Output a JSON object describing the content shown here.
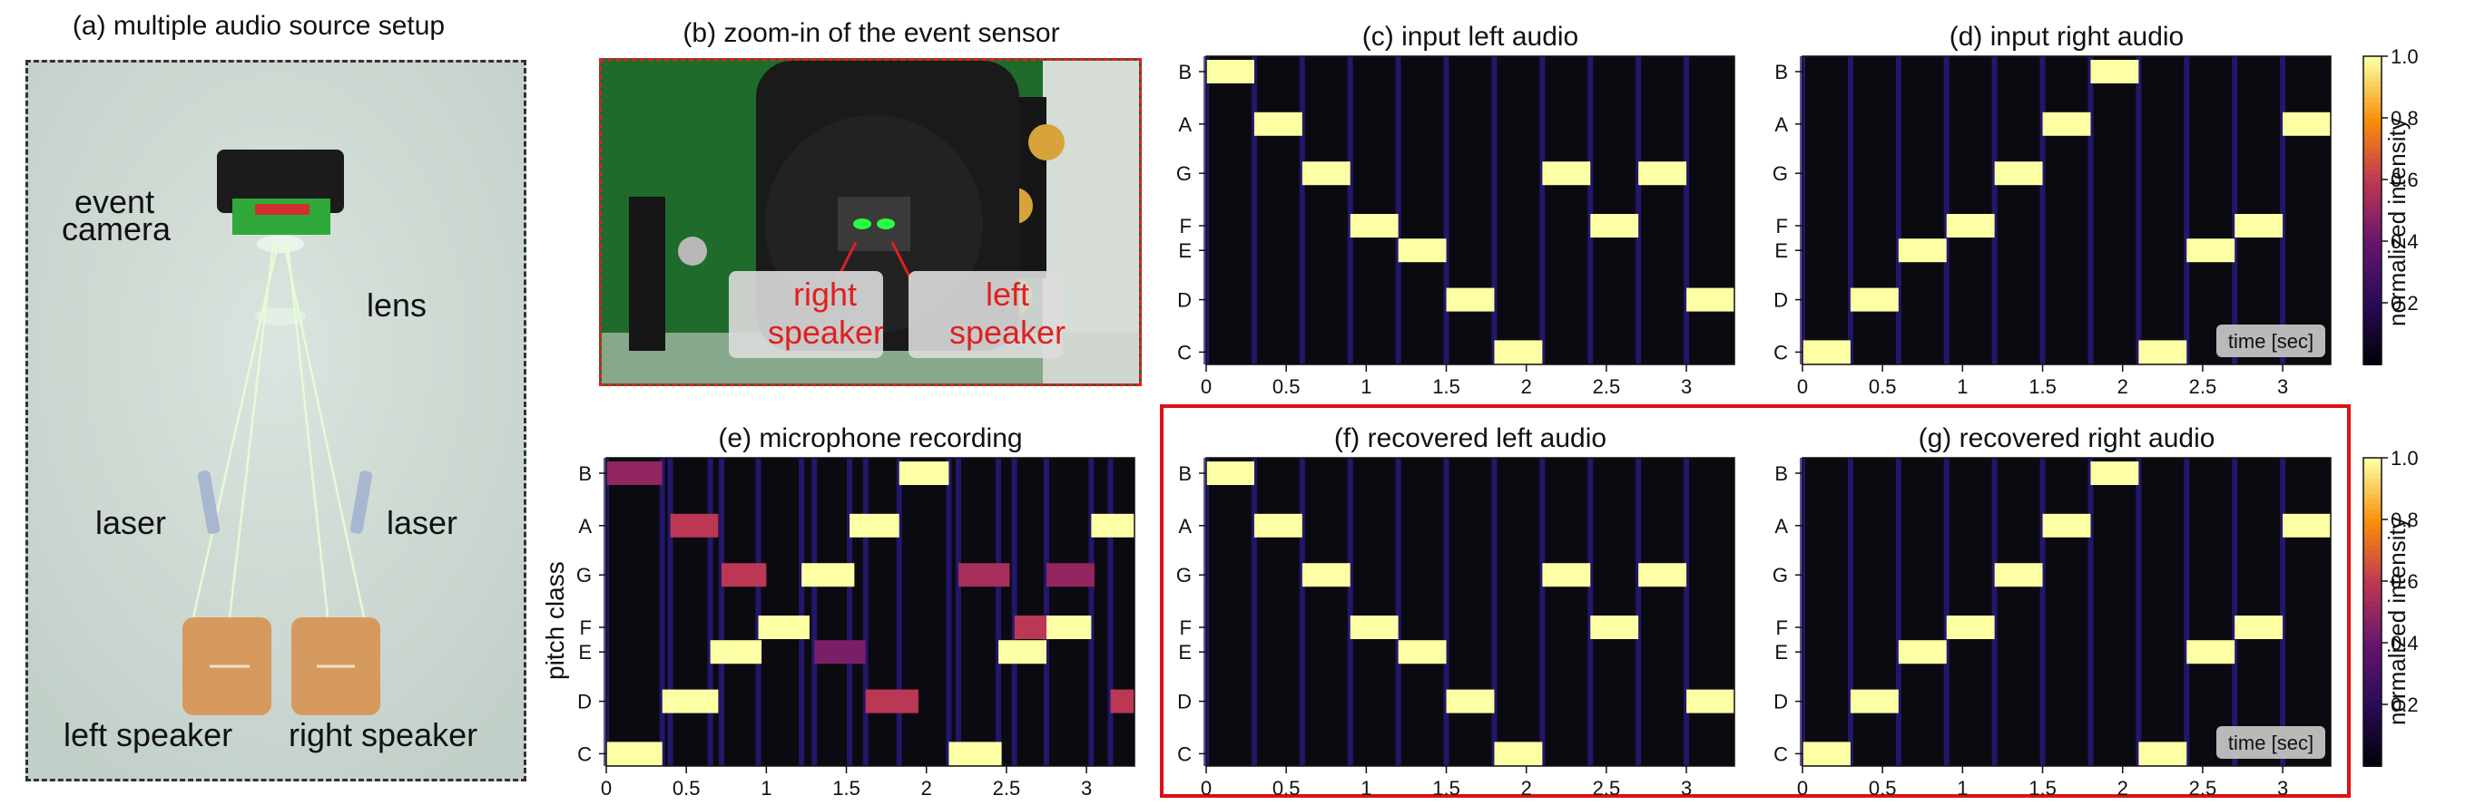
{
  "panels": {
    "a": {
      "title": "(a) multiple audio source setup",
      "labels": {
        "event_camera_1": "event",
        "event_camera_2": "camera",
        "lens": "lens",
        "laser_left": "laser",
        "laser_right": "laser",
        "left_speaker": "left speaker",
        "right_speaker": "right speaker"
      },
      "colors": {
        "background": "#cfd9d3",
        "border": "#333333",
        "speaker": "#d79a5e",
        "laser": "#d9f5c4"
      }
    },
    "b": {
      "title": "(b) zoom-in of the event sensor",
      "labels": {
        "right_speaker_1": "right",
        "right_speaker_2": "speaker",
        "left_speaker_1": "left",
        "left_speaker_2": "speaker"
      },
      "colors": {
        "border": "#e02020",
        "label_text": "#e02020",
        "pcb": "#1f6a2a"
      }
    },
    "c": {
      "title": "(c) input left audio"
    },
    "d": {
      "title": "(d) input right audio",
      "badge": "time [sec]"
    },
    "e": {
      "title": "(e) microphone recording",
      "ylabel": "pitch class"
    },
    "f": {
      "title": "(f) recovered left audio"
    },
    "g": {
      "title": "(g) recovered right audio",
      "badge": "time [sec]"
    },
    "colorbar": {
      "label": "normalized intensity",
      "ticks": [
        "0.2",
        "0.4",
        "0.6",
        "0.8",
        "1.0"
      ]
    },
    "highlight_color": "#e01010"
  },
  "chart_data": [
    {
      "id": "c",
      "type": "heatmap",
      "title": "(c) input left audio",
      "y_categories": [
        "C",
        "D",
        "E",
        "F",
        "G",
        "A",
        "B"
      ],
      "x_ticks": [
        "0",
        "0.5",
        "1",
        "1.5",
        "2",
        "2.5",
        "3"
      ],
      "xlim": [
        0,
        3.3
      ],
      "notes": [
        {
          "pitch": "B",
          "t0": 0.0,
          "t1": 0.3
        },
        {
          "pitch": "A",
          "t0": 0.3,
          "t1": 0.6
        },
        {
          "pitch": "G",
          "t0": 0.6,
          "t1": 0.9
        },
        {
          "pitch": "F",
          "t0": 0.9,
          "t1": 1.2
        },
        {
          "pitch": "E",
          "t0": 1.2,
          "t1": 1.5
        },
        {
          "pitch": "D",
          "t0": 1.5,
          "t1": 1.8
        },
        {
          "pitch": "C",
          "t0": 1.8,
          "t1": 2.1
        },
        {
          "pitch": "G",
          "t0": 2.1,
          "t1": 2.4
        },
        {
          "pitch": "F",
          "t0": 2.4,
          "t1": 2.7
        },
        {
          "pitch": "G",
          "t0": 2.7,
          "t1": 3.0
        },
        {
          "pitch": "D",
          "t0": 3.0,
          "t1": 3.3
        }
      ]
    },
    {
      "id": "d",
      "type": "heatmap",
      "title": "(d) input right audio",
      "y_categories": [
        "C",
        "D",
        "E",
        "F",
        "G",
        "A",
        "B"
      ],
      "x_ticks": [
        "0",
        "0.5",
        "1",
        "1.5",
        "2",
        "2.5",
        "3"
      ],
      "xlim": [
        0,
        3.3
      ],
      "notes": [
        {
          "pitch": "C",
          "t0": 0.0,
          "t1": 0.3
        },
        {
          "pitch": "D",
          "t0": 0.3,
          "t1": 0.6
        },
        {
          "pitch": "E",
          "t0": 0.6,
          "t1": 0.9
        },
        {
          "pitch": "F",
          "t0": 0.9,
          "t1": 1.2
        },
        {
          "pitch": "G",
          "t0": 1.2,
          "t1": 1.5
        },
        {
          "pitch": "A",
          "t0": 1.5,
          "t1": 1.8
        },
        {
          "pitch": "B",
          "t0": 1.8,
          "t1": 2.1
        },
        {
          "pitch": "C",
          "t0": 2.1,
          "t1": 2.4
        },
        {
          "pitch": "E",
          "t0": 2.4,
          "t1": 2.7
        },
        {
          "pitch": "F",
          "t0": 2.7,
          "t1": 3.0
        },
        {
          "pitch": "A",
          "t0": 3.0,
          "t1": 3.3
        }
      ]
    },
    {
      "id": "e",
      "type": "heatmap",
      "title": "(e) microphone recording",
      "ylabel": "pitch class",
      "y_categories": [
        "C",
        "D",
        "E",
        "F",
        "G",
        "A",
        "B"
      ],
      "x_ticks": [
        "0",
        "0.5",
        "1",
        "1.5",
        "2",
        "2.5",
        "3"
      ],
      "xlim": [
        0,
        3.3
      ],
      "notes": [
        {
          "pitch": "C",
          "t0": 0.0,
          "t1": 0.35,
          "level": 1.0
        },
        {
          "pitch": "B",
          "t0": 0.0,
          "t1": 0.35,
          "level": 0.5
        },
        {
          "pitch": "D",
          "t0": 0.35,
          "t1": 0.7,
          "level": 1.0
        },
        {
          "pitch": "A",
          "t0": 0.4,
          "t1": 0.7,
          "level": 0.6
        },
        {
          "pitch": "E",
          "t0": 0.65,
          "t1": 0.97,
          "level": 1.0
        },
        {
          "pitch": "G",
          "t0": 0.72,
          "t1": 1.0,
          "level": 0.6
        },
        {
          "pitch": "F",
          "t0": 0.95,
          "t1": 1.27,
          "level": 1.0
        },
        {
          "pitch": "E",
          "t0": 1.3,
          "t1": 1.62,
          "level": 0.45
        },
        {
          "pitch": "G",
          "t0": 1.22,
          "t1": 1.55,
          "level": 1.0
        },
        {
          "pitch": "A",
          "t0": 1.52,
          "t1": 1.83,
          "level": 1.0
        },
        {
          "pitch": "D",
          "t0": 1.62,
          "t1": 1.95,
          "level": 0.6
        },
        {
          "pitch": "B",
          "t0": 1.83,
          "t1": 2.14,
          "level": 1.0
        },
        {
          "pitch": "C",
          "t0": 2.14,
          "t1": 2.47,
          "level": 1.0
        },
        {
          "pitch": "G",
          "t0": 2.2,
          "t1": 2.52,
          "level": 0.55
        },
        {
          "pitch": "E",
          "t0": 2.45,
          "t1": 2.75,
          "level": 1.0
        },
        {
          "pitch": "F",
          "t0": 2.55,
          "t1": 2.75,
          "level": 0.6
        },
        {
          "pitch": "F",
          "t0": 2.75,
          "t1": 3.03,
          "level": 1.0
        },
        {
          "pitch": "G",
          "t0": 2.75,
          "t1": 3.05,
          "level": 0.5
        },
        {
          "pitch": "A",
          "t0": 3.03,
          "t1": 3.3,
          "level": 1.0
        },
        {
          "pitch": "D",
          "t0": 3.15,
          "t1": 3.3,
          "level": 0.6
        }
      ]
    },
    {
      "id": "f",
      "type": "heatmap",
      "title": "(f) recovered left audio",
      "y_categories": [
        "C",
        "D",
        "E",
        "F",
        "G",
        "A",
        "B"
      ],
      "x_ticks": [
        "0",
        "0.5",
        "1",
        "1.5",
        "2",
        "2.5",
        "3"
      ],
      "xlim": [
        0,
        3.3
      ],
      "notes": [
        {
          "pitch": "B",
          "t0": 0.0,
          "t1": 0.3
        },
        {
          "pitch": "A",
          "t0": 0.3,
          "t1": 0.6
        },
        {
          "pitch": "G",
          "t0": 0.6,
          "t1": 0.9
        },
        {
          "pitch": "F",
          "t0": 0.9,
          "t1": 1.2
        },
        {
          "pitch": "E",
          "t0": 1.2,
          "t1": 1.5
        },
        {
          "pitch": "D",
          "t0": 1.5,
          "t1": 1.8
        },
        {
          "pitch": "C",
          "t0": 1.8,
          "t1": 2.1
        },
        {
          "pitch": "G",
          "t0": 2.1,
          "t1": 2.4
        },
        {
          "pitch": "F",
          "t0": 2.4,
          "t1": 2.7
        },
        {
          "pitch": "G",
          "t0": 2.7,
          "t1": 3.0
        },
        {
          "pitch": "D",
          "t0": 3.0,
          "t1": 3.3
        }
      ]
    },
    {
      "id": "g",
      "type": "heatmap",
      "title": "(g) recovered right audio",
      "y_categories": [
        "C",
        "D",
        "E",
        "F",
        "G",
        "A",
        "B"
      ],
      "x_ticks": [
        "0",
        "0.5",
        "1",
        "1.5",
        "2",
        "2.5",
        "3"
      ],
      "xlim": [
        0,
        3.3
      ],
      "notes": [
        {
          "pitch": "C",
          "t0": 0.0,
          "t1": 0.3
        },
        {
          "pitch": "D",
          "t0": 0.3,
          "t1": 0.6
        },
        {
          "pitch": "E",
          "t0": 0.6,
          "t1": 0.9
        },
        {
          "pitch": "F",
          "t0": 0.9,
          "t1": 1.2
        },
        {
          "pitch": "G",
          "t0": 1.2,
          "t1": 1.5
        },
        {
          "pitch": "A",
          "t0": 1.5,
          "t1": 1.8
        },
        {
          "pitch": "B",
          "t0": 1.8,
          "t1": 2.1
        },
        {
          "pitch": "C",
          "t0": 2.1,
          "t1": 2.4
        },
        {
          "pitch": "E",
          "t0": 2.4,
          "t1": 2.7
        },
        {
          "pitch": "F",
          "t0": 2.7,
          "t1": 3.0
        },
        {
          "pitch": "A",
          "t0": 3.0,
          "t1": 3.3
        }
      ]
    }
  ]
}
